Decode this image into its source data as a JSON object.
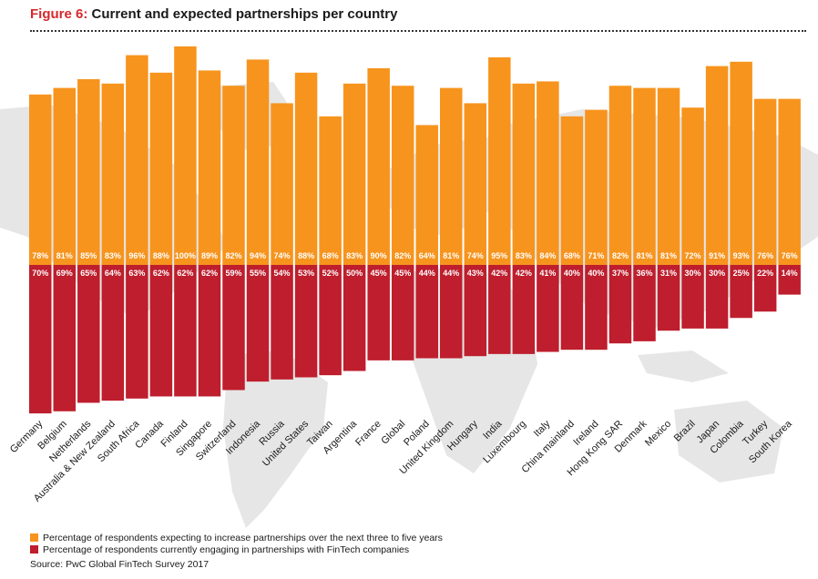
{
  "header": {
    "figure_label": "Figure 6:",
    "title_text": "Current and expected partnerships per country"
  },
  "colors": {
    "expected": "#f7941d",
    "current": "#be1e2d",
    "map": "#e6e6e6",
    "title_accent": "#d6282b"
  },
  "chart_data": {
    "type": "bar",
    "title": "Figure 6: Current and expected partnerships per country",
    "categories": [
      "Germany",
      "Belgium",
      "Netherlands",
      "Australia & New Zealand",
      "South Africa",
      "Canada",
      "Finland",
      "Singapore",
      "Switzerland",
      "Indonesia",
      "Russia",
      "United States",
      "Taiwan",
      "Argentina",
      "France",
      "Global",
      "Poland",
      "United Kingdom",
      "Hungary",
      "India",
      "Luxembourg",
      "Italy",
      "China mainland",
      "Ireland",
      "Hong Kong SAR",
      "Denmark",
      "Mexico",
      "Brazil",
      "Japan",
      "Colombia",
      "Turkey",
      "South Korea"
    ],
    "series": [
      {
        "name": "Percentage of respondents expecting to increase partnerships over the next three to five years",
        "values": [
          78,
          81,
          85,
          83,
          96,
          88,
          100,
          89,
          82,
          94,
          74,
          88,
          68,
          83,
          90,
          82,
          64,
          81,
          74,
          95,
          83,
          84,
          68,
          71,
          82,
          81,
          81,
          72,
          91,
          93,
          76,
          76
        ]
      },
      {
        "name": "Percentage of respondents currently engaging in partnerships with FinTech companies",
        "values": [
          70,
          69,
          65,
          64,
          63,
          62,
          62,
          62,
          59,
          55,
          54,
          53,
          52,
          50,
          45,
          45,
          44,
          44,
          43,
          42,
          42,
          41,
          40,
          40,
          37,
          36,
          31,
          30,
          30,
          25,
          22,
          14
        ]
      }
    ],
    "ylabel": "",
    "xlabel": "",
    "legend_position": "bottom-left",
    "data_labels": true,
    "value_suffix": "%"
  },
  "legend": {
    "expected_label": "Percentage of respondents expecting to increase partnerships over the next three to five years",
    "current_label": "Percentage of respondents currently engaging in partnerships with FinTech companies"
  },
  "source": "Source: PwC Global FinTech Survey 2017"
}
